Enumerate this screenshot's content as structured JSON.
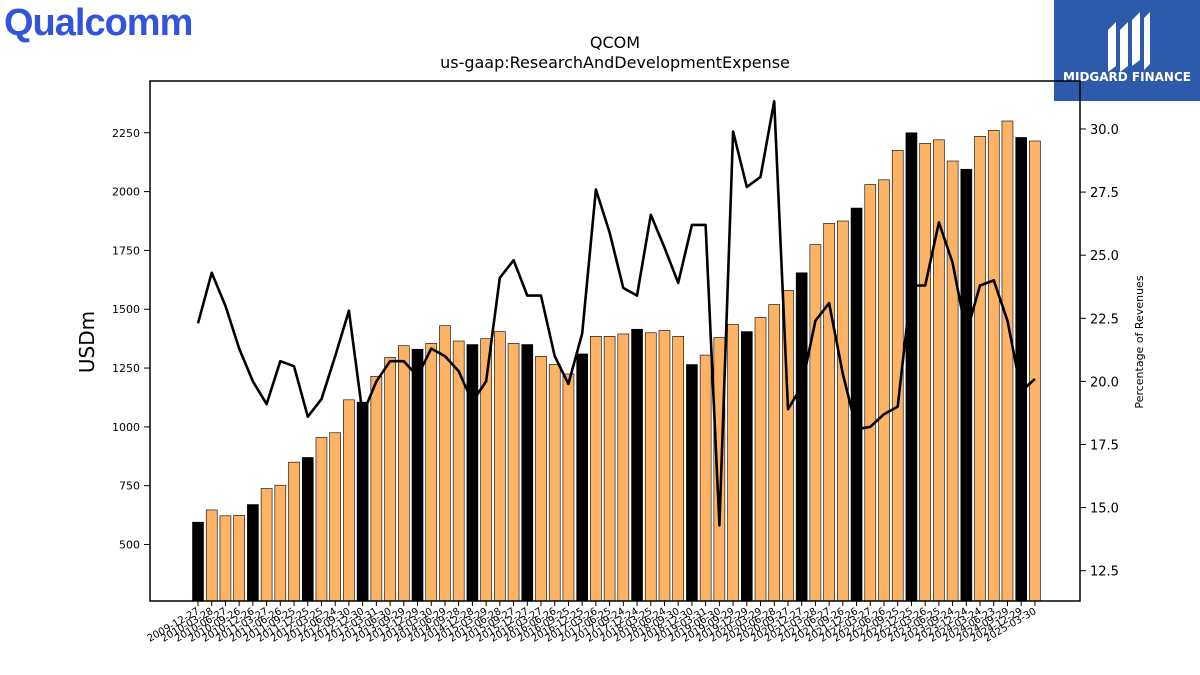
{
  "brand": {
    "company_logo_text": "Qualcomm",
    "company_logo_color": "#3253dc",
    "publisher_logo_text": "MIDGARD FINANCE",
    "publisher_bg_color": "#2e5aac"
  },
  "chart_data": {
    "type": "bar",
    "title": "QCOM",
    "subtitle": "us-gaap:ResearchAndDevelopmentExpense",
    "ylabel": "USDm",
    "y2label": "Percentage of Revenues",
    "ylim": [
      260,
      2470
    ],
    "y2lim": [
      11.3,
      31.9
    ],
    "yticks": [
      500,
      750,
      1000,
      1250,
      1500,
      1750,
      2000,
      2250
    ],
    "y2ticks": [
      "12.5",
      "15.0",
      "17.5",
      "20.0",
      "22.5",
      "25.0",
      "27.5",
      "30.0"
    ],
    "bar_color": "#fdb366",
    "fy_bar_color": "#000000",
    "line_color": "#000000",
    "categories": [
      "2009-12-27",
      "2010-03-28",
      "2010-06-27",
      "2010-09-26",
      "2010-12-26",
      "2011-03-27",
      "2011-06-26",
      "2011-09-25",
      "2011-12-25",
      "2012-03-25",
      "2012-06-24",
      "2012-09-30",
      "2012-12-30",
      "2013-03-31",
      "2013-06-30",
      "2013-09-29",
      "2013-12-29",
      "2014-03-30",
      "2014-06-29",
      "2014-09-28",
      "2014-12-28",
      "2015-03-29",
      "2015-06-28",
      "2015-09-27",
      "2015-12-27",
      "2016-03-27",
      "2016-06-26",
      "2016-09-25",
      "2016-12-25",
      "2017-03-26",
      "2017-06-25",
      "2017-09-24",
      "2017-12-24",
      "2018-03-25",
      "2018-06-24",
      "2018-09-30",
      "2018-12-30",
      "2019-03-31",
      "2019-06-30",
      "2019-09-29",
      "2019-12-29",
      "2020-03-29",
      "2020-06-28",
      "2020-09-27",
      "2020-12-27",
      "2021-03-28",
      "2021-06-27",
      "2021-09-26",
      "2021-12-26",
      "2022-03-27",
      "2022-06-26",
      "2022-09-25",
      "2022-12-25",
      "2023-03-26",
      "2023-06-25",
      "2023-09-24",
      "2023-12-24",
      "2024-03-24",
      "2024-06-23",
      "2024-09-29",
      "2024-12-29",
      "2025-03-30"
    ],
    "series": [
      {
        "values": [
          595,
          647,
          622,
          624,
          670,
          738,
          752,
          850,
          870,
          955,
          975,
          1115,
          1105,
          1215,
          1295,
          1345,
          1330,
          1355,
          1430,
          1365,
          1350,
          1375,
          1405,
          1355,
          1350,
          1300,
          1265,
          1225,
          1310,
          1385,
          1385,
          1395,
          1415,
          1400,
          1410,
          1385,
          1265,
          1305,
          1380,
          1435,
          1405,
          1465,
          1520,
          1580,
          1655,
          1775,
          1865,
          1875,
          1930,
          2030,
          2050,
          2175,
          2250,
          2205,
          2220,
          2130,
          2095,
          2235,
          2260,
          2300,
          2230,
          2215
        ],
        "fy_flags": [
          1,
          0,
          0,
          0,
          1,
          0,
          0,
          0,
          1,
          0,
          0,
          0,
          1,
          0,
          0,
          0,
          1,
          0,
          0,
          0,
          1,
          0,
          0,
          0,
          1,
          0,
          0,
          0,
          1,
          0,
          0,
          0,
          1,
          0,
          0,
          0,
          1,
          0,
          0,
          0,
          1,
          0,
          0,
          0,
          1,
          0,
          0,
          0,
          1,
          0,
          0,
          0,
          1,
          0,
          0,
          0,
          1,
          0,
          0,
          0,
          1,
          0
        ]
      },
      {
        "axis": "right",
        "values": [
          22.3,
          24.3,
          23.0,
          21.3,
          20.0,
          19.1,
          20.8,
          20.6,
          18.6,
          19.3,
          21.0,
          22.8,
          18.7,
          20.0,
          20.8,
          20.8,
          20.2,
          21.3,
          21.0,
          20.4,
          19.2,
          20.0,
          24.1,
          24.8,
          23.4,
          23.4,
          21.0,
          19.9,
          21.9,
          27.6,
          25.9,
          23.7,
          23.4,
          26.6,
          25.3,
          23.9,
          26.2,
          26.2,
          14.3,
          29.9,
          27.7,
          28.1,
          31.1,
          18.9,
          19.8,
          22.4,
          23.1,
          20.3,
          18.1,
          18.2,
          18.7,
          19.0,
          23.8,
          23.8,
          26.3,
          24.7,
          21.9,
          23.8,
          24.0,
          22.4,
          19.6,
          20.1
        ]
      }
    ]
  }
}
